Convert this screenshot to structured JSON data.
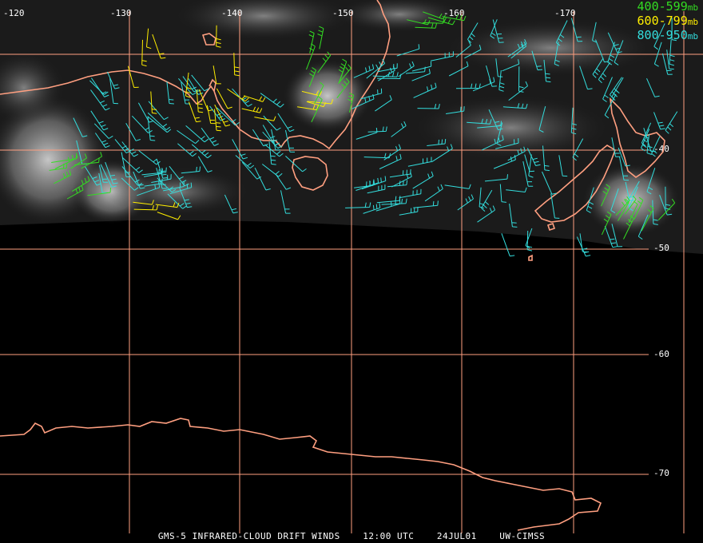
{
  "map": {
    "longitude_labels": [
      "-120",
      "-130",
      "-140",
      "-150",
      "-160",
      "-170"
    ],
    "latitude_labels": [
      "-40",
      "-50",
      "-60",
      "-70"
    ],
    "colors": {
      "coastline": "#ff9f80",
      "grid": "#ff9f80",
      "cloud": "#b9b9b9",
      "level_400_599": "#33dd22",
      "level_600_799": "#ffee00",
      "level_800_950": "#33dddd"
    }
  },
  "legend": [
    {
      "range": "400-599",
      "unit": "mb",
      "color": "#33dd22"
    },
    {
      "range": "600-799",
      "unit": "mb",
      "color": "#ffee00"
    },
    {
      "range": "800-950",
      "unit": "mb",
      "color": "#33dddd"
    }
  ],
  "caption": {
    "product": "GMS-5 INFRARED-CLOUD DRIFT WINDS",
    "time": "12:00 UTC",
    "date": "24JUL01",
    "source": "UW-CIMSS"
  }
}
